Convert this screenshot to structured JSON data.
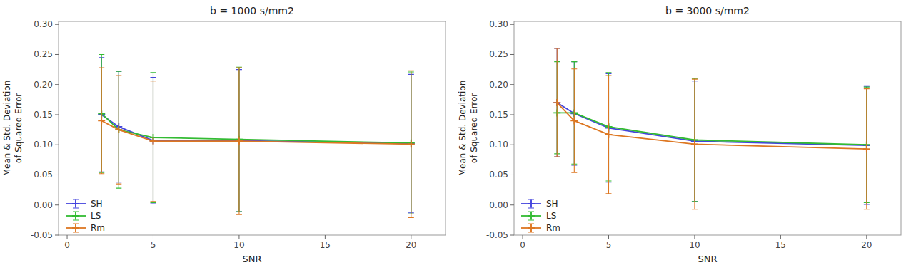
{
  "chart_data": [
    {
      "type": "line",
      "title": "b = 1000 s/mm2",
      "x_label": "SNR",
      "y_label": "Mean & Std. Deviation\nof Squared Error",
      "x": [
        2,
        3,
        5,
        10,
        20
      ],
      "series": [
        {
          "name": "SH",
          "color": "#4444dd",
          "marker": "plus",
          "values": [
            0.15,
            0.13,
            0.107,
            0.107,
            0.102
          ],
          "error_plus": [
            0.095,
            0.092,
            0.105,
            0.118,
            0.115
          ],
          "error_minus": [
            0.095,
            0.092,
            0.105,
            0.118,
            0.115
          ]
        },
        {
          "name": "LS",
          "color": "#33bb33",
          "marker": "plus",
          "values": [
            0.152,
            0.125,
            0.112,
            0.109,
            0.103
          ],
          "error_plus": [
            0.098,
            0.097,
            0.108,
            0.12,
            0.118
          ],
          "error_minus": [
            0.098,
            0.097,
            0.108,
            0.12,
            0.118
          ]
        },
        {
          "name": "Rm",
          "color": "#dd7722",
          "marker": "plus",
          "values": [
            0.14,
            0.125,
            0.106,
            0.106,
            0.101
          ],
          "error_plus": [
            0.088,
            0.09,
            0.1,
            0.122,
            0.122
          ],
          "error_minus": [
            0.088,
            0.09,
            0.1,
            0.122,
            0.122
          ]
        }
      ],
      "xlim": [
        -0.5,
        22
      ],
      "xticks": [
        0,
        5,
        10,
        15,
        20
      ],
      "ylim": [
        -0.05,
        0.305
      ],
      "yticks": [
        -0.05,
        {
          "value": 0,
          "label": "0.00"
        },
        0.05,
        {
          "value": 0.1,
          "label": "0.10"
        },
        0.15,
        {
          "value": 0.2,
          "label": "0.20"
        },
        0.25,
        {
          "value": 0.3,
          "label": "0.30"
        }
      ],
      "grid": false,
      "legend": "lower left"
    },
    {
      "type": "line",
      "title": "b = 3000 s/mm2",
      "x_label": "SNR",
      "y_label": "Mean & Std. Deviation\nof Squared Error",
      "x": [
        2,
        3,
        5,
        10,
        20
      ],
      "series": [
        {
          "name": "SH",
          "color": "#4444dd",
          "marker": "plus",
          "values": [
            0.17,
            0.152,
            0.128,
            0.106,
            0.099
          ],
          "error_plus": [
            0.09,
            0.086,
            0.09,
            0.1,
            0.098
          ],
          "error_minus": [
            0.09,
            0.086,
            0.09,
            0.1,
            0.098
          ]
        },
        {
          "name": "LS",
          "color": "#33bb33",
          "marker": "plus",
          "values": [
            0.153,
            0.153,
            0.13,
            0.108,
            0.1
          ],
          "error_plus": [
            0.085,
            0.085,
            0.09,
            0.102,
            0.096
          ],
          "error_minus": [
            0.068,
            0.085,
            0.09,
            0.102,
            0.096
          ]
        },
        {
          "name": "Rm",
          "color": "#dd7722",
          "marker": "plus",
          "values": [
            0.17,
            0.14,
            0.117,
            0.101,
            0.093
          ],
          "error_plus": [
            0.09,
            0.086,
            0.098,
            0.108,
            0.1
          ],
          "error_minus": [
            0.09,
            0.086,
            0.098,
            0.108,
            0.1
          ]
        }
      ],
      "xlim": [
        -0.5,
        22
      ],
      "xticks": [
        0,
        5,
        10,
        15,
        20
      ],
      "ylim": [
        -0.05,
        0.305
      ],
      "yticks": [
        -0.05,
        {
          "value": 0,
          "label": "0.00"
        },
        0.05,
        {
          "value": 0.1,
          "label": "0.10"
        },
        0.15,
        {
          "value": 0.2,
          "label": "0.20"
        },
        0.25,
        {
          "value": 0.3,
          "label": "0.30"
        }
      ],
      "grid": false,
      "legend": "lower left"
    }
  ]
}
